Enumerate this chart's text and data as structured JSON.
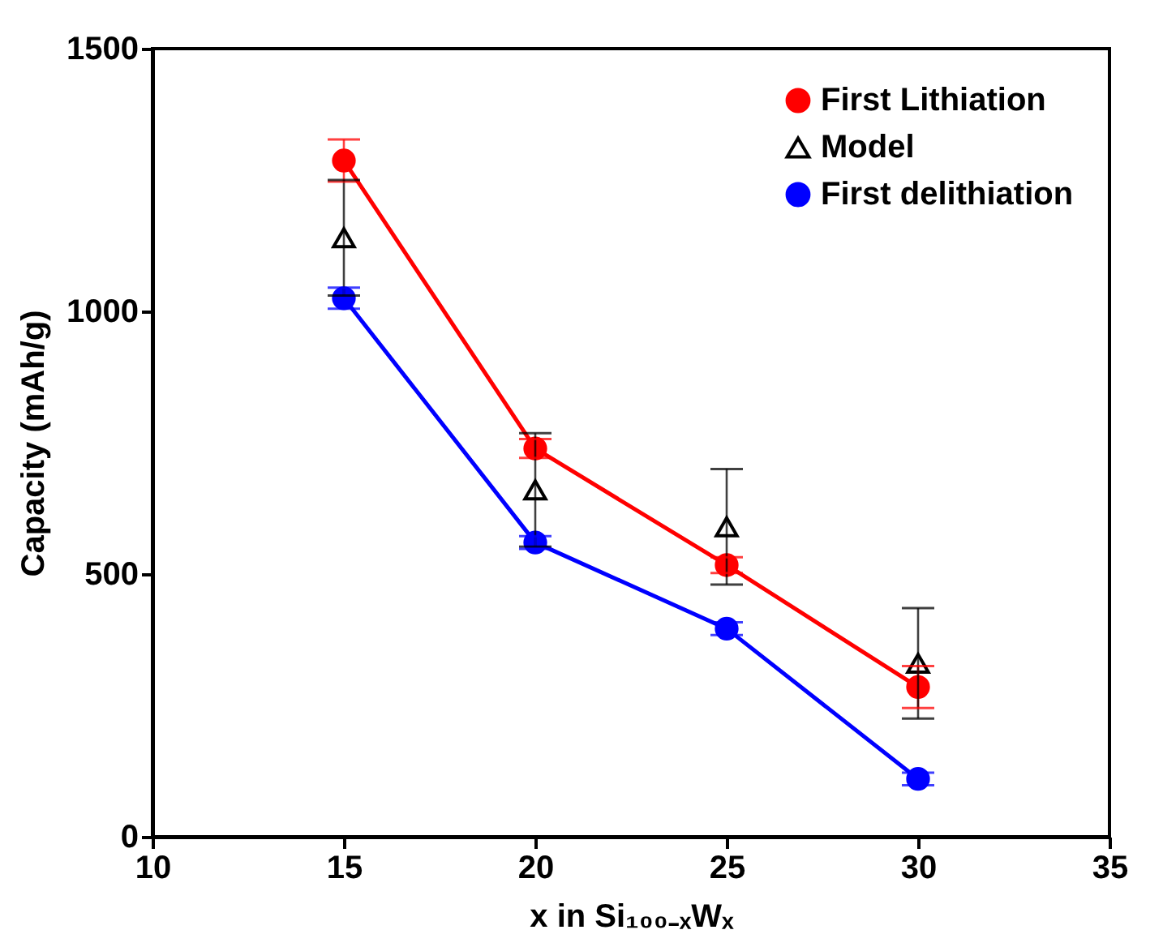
{
  "chart_data": {
    "type": "line",
    "xlabel": "x in Si₁₀₀₋ₓWₓ",
    "ylabel": "Capacity (mAh/g)",
    "x": [
      15,
      20,
      25,
      30
    ],
    "xlim": [
      10,
      35
    ],
    "xticks": [
      10,
      15,
      20,
      25,
      30,
      35
    ],
    "ylim": [
      0,
      1500
    ],
    "yticks": [
      0,
      500,
      1000,
      1500
    ],
    "grid": false,
    "legend": "top right",
    "series": [
      {
        "name": "First Lithiation",
        "marker": "circle",
        "color": "#ff0000",
        "values": [
          1287,
          739,
          517,
          285
        ],
        "errors": [
          40,
          18,
          15,
          40
        ]
      },
      {
        "name": "Model",
        "type": "scatter",
        "marker": "triangle",
        "color": "#000000",
        "values": [
          1140,
          660,
          590,
          330
        ],
        "errors": [
          110,
          108,
          110,
          105
        ]
      },
      {
        "name": "First delithiation",
        "marker": "circle",
        "color": "#0000ff",
        "values": [
          1025,
          560,
          396,
          110
        ],
        "errors": [
          20,
          12,
          12,
          12
        ]
      }
    ]
  }
}
